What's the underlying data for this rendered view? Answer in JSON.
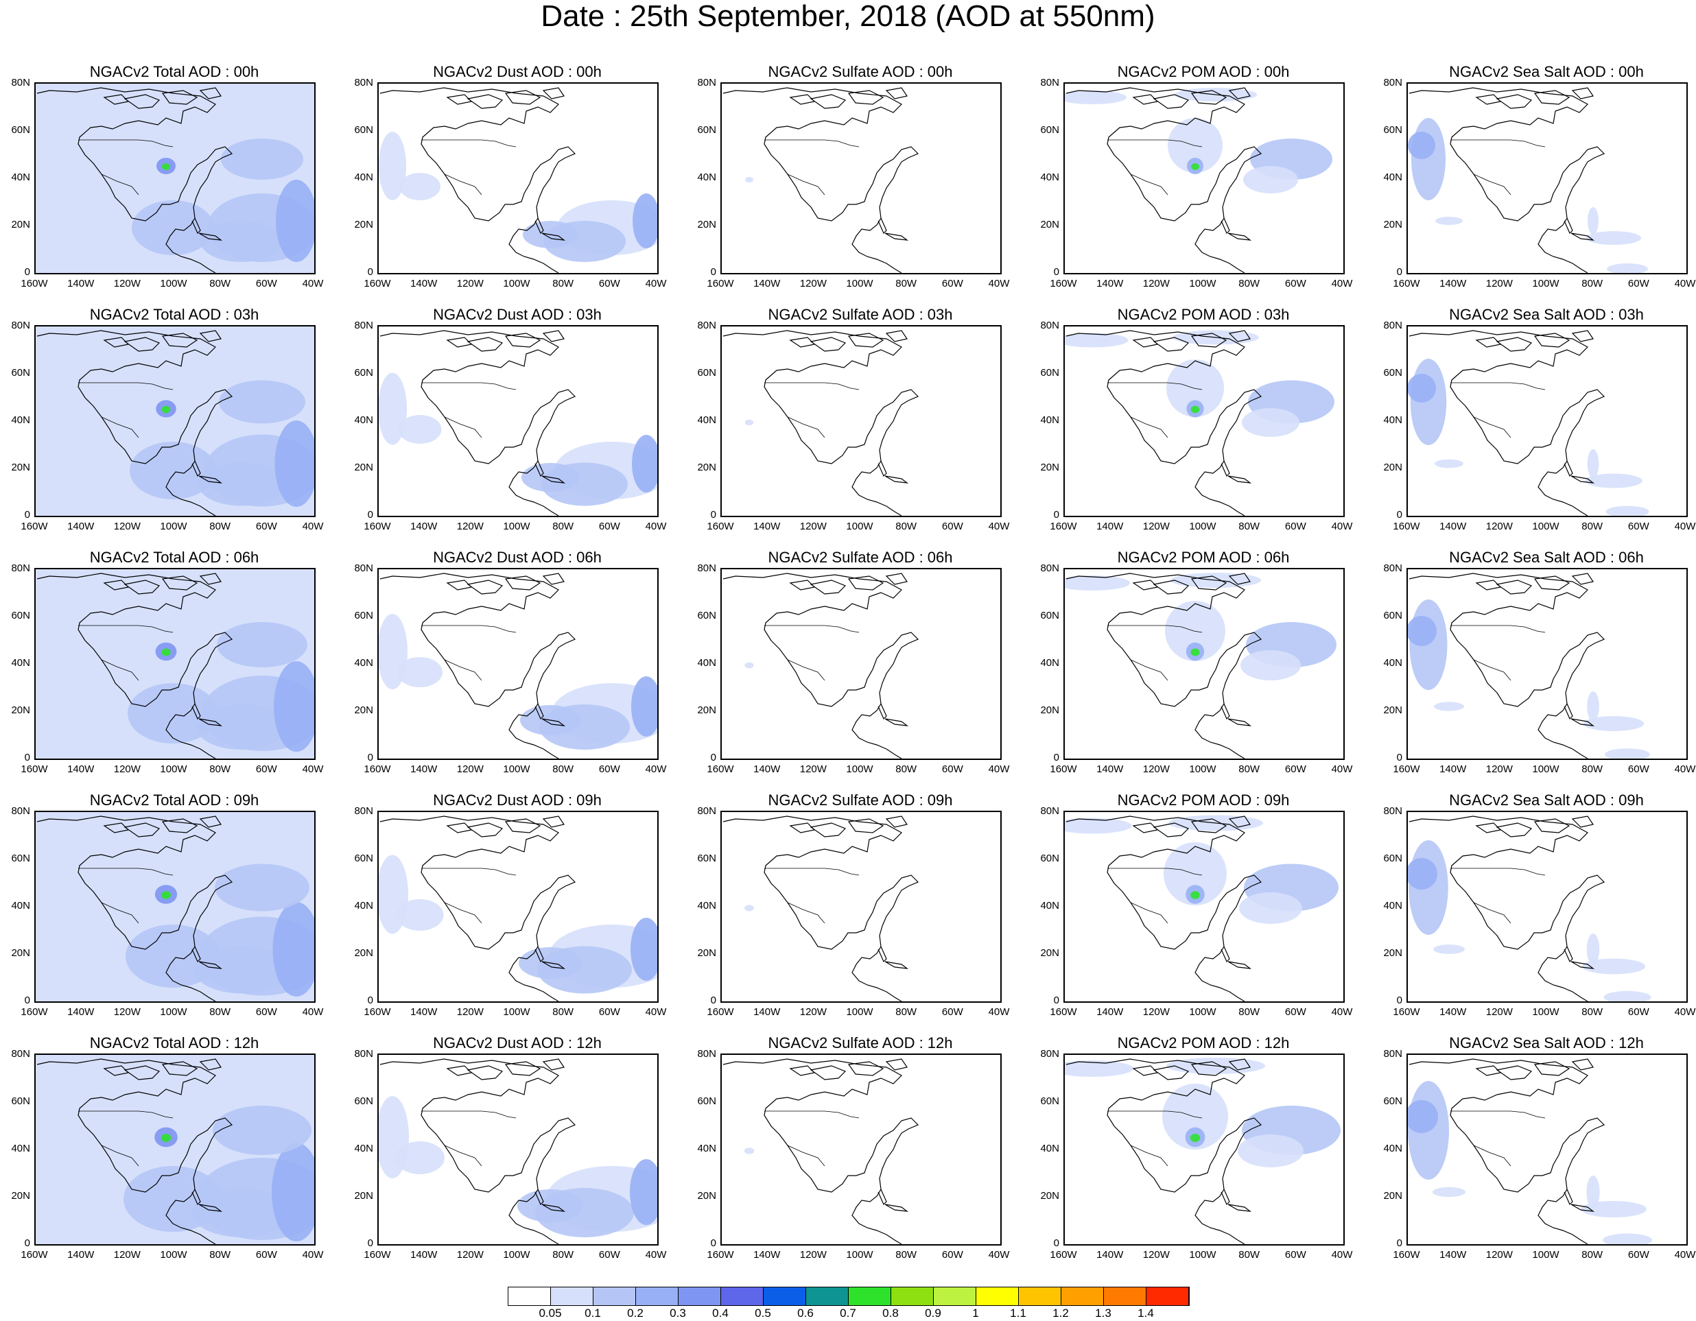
{
  "title": "Date : 25th September, 2018 (AOD at 550nm)",
  "y_tick_labels": [
    "80N",
    "60N",
    "40N",
    "20N",
    "0"
  ],
  "x_tick_labels": [
    "160W",
    "140W",
    "120W",
    "100W",
    "80W",
    "60W",
    "40W"
  ],
  "panel_titles": [
    [
      "NGACv2 Total AOD : 00h",
      "NGACv2 Dust AOD : 00h",
      "NGACv2 Sulfate AOD : 00h",
      "NGACv2 POM AOD : 00h",
      "NGACv2 Sea Salt AOD : 00h"
    ],
    [
      "NGACv2 Total AOD : 03h",
      "NGACv2 Dust AOD : 03h",
      "NGACv2 Sulfate AOD : 03h",
      "NGACv2 POM AOD : 03h",
      "NGACv2 Sea Salt AOD : 03h"
    ],
    [
      "NGACv2 Total AOD : 06h",
      "NGACv2 Dust AOD : 06h",
      "NGACv2 Sulfate AOD : 06h",
      "NGACv2 POM AOD : 06h",
      "NGACv2 Sea Salt AOD : 06h"
    ],
    [
      "NGACv2 Total AOD : 09h",
      "NGACv2 Dust AOD : 09h",
      "NGACv2 Sulfate AOD : 09h",
      "NGACv2 POM AOD : 09h",
      "NGACv2 Sea Salt  AOD : 09h"
    ],
    [
      "NGACv2 Total AOD  : 12h",
      "NGACv2 Dust AOD : 12h",
      "NGACv2 Sulfate AOD : 12h",
      "NGACv2 POM  AOD : 12h",
      "NGACv2 Sea Salt  AOD : 12h"
    ]
  ],
  "colorbar": {
    "labels": [
      "0.05",
      "0.1",
      "0.2",
      "0.3",
      "0.4",
      "0.5",
      "0.6",
      "0.7",
      "0.8",
      "0.9",
      "1",
      "1.1",
      "1.2",
      "1.3",
      "1.4"
    ],
    "colors": [
      "#ffffff",
      "#d6e0fb",
      "#b5c6f6",
      "#98b0f5",
      "#7f95f2",
      "#5e66ea",
      "#0b5ee8",
      "#0f9494",
      "#2ee22c",
      "#8ee010",
      "#bdf241",
      "#ffff00",
      "#ffc400",
      "#ff9f00",
      "#ff7a00",
      "#ff2a00"
    ]
  }
}
